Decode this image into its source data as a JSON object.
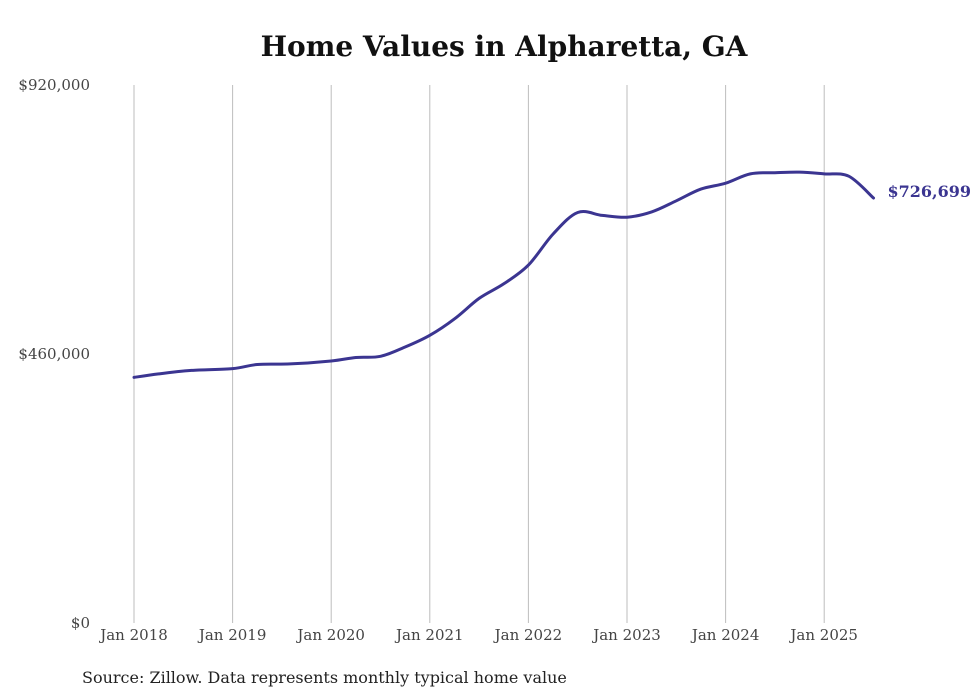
{
  "chart_data": {
    "type": "line",
    "title": "Home Values in Alpharetta, GA",
    "xlabel": "",
    "ylabel": "",
    "ylim": [
      0,
      920000
    ],
    "yticks": [
      "$0",
      "$460,000",
      "$920,000"
    ],
    "ytick_values": [
      0,
      460000,
      920000
    ],
    "xticks": [
      "Jan 2018",
      "Jan 2019",
      "Jan 2020",
      "Jan 2021",
      "Jan 2022",
      "Jan 2023",
      "Jan 2024",
      "Jan 2025"
    ],
    "xtick_years": [
      2018,
      2019,
      2020,
      2021,
      2022,
      2023,
      2024,
      2025
    ],
    "grid": "vertical",
    "line_color": "#3b3591",
    "end_label": "$726,699",
    "series": [
      {
        "points": [
          {
            "date": "2018-01",
            "value": 420000
          },
          {
            "date": "2018-04",
            "value": 426000
          },
          {
            "date": "2018-08",
            "value": 432000
          },
          {
            "date": "2019-01",
            "value": 435000
          },
          {
            "date": "2019-04",
            "value": 442000
          },
          {
            "date": "2019-08",
            "value": 443000
          },
          {
            "date": "2020-01",
            "value": 448000
          },
          {
            "date": "2020-04",
            "value": 454000
          },
          {
            "date": "2020-07",
            "value": 456000
          },
          {
            "date": "2020-10",
            "value": 472000
          },
          {
            "date": "2021-01",
            "value": 492000
          },
          {
            "date": "2021-04",
            "value": 520000
          },
          {
            "date": "2021-07",
            "value": 555000
          },
          {
            "date": "2021-10",
            "value": 580000
          },
          {
            "date": "2022-01",
            "value": 612000
          },
          {
            "date": "2022-04",
            "value": 665000
          },
          {
            "date": "2022-07",
            "value": 702000
          },
          {
            "date": "2022-10",
            "value": 697000
          },
          {
            "date": "2023-01",
            "value": 694000
          },
          {
            "date": "2023-04",
            "value": 703000
          },
          {
            "date": "2023-07",
            "value": 722000
          },
          {
            "date": "2023-10",
            "value": 742000
          },
          {
            "date": "2024-01",
            "value": 752000
          },
          {
            "date": "2024-04",
            "value": 768000
          },
          {
            "date": "2024-07",
            "value": 770000
          },
          {
            "date": "2024-10",
            "value": 771000
          },
          {
            "date": "2025-01",
            "value": 768000
          },
          {
            "date": "2025-04",
            "value": 764000
          },
          {
            "date": "2025-07",
            "value": 726699
          }
        ]
      }
    ]
  },
  "source_text": "Source: Zillow. Data represents monthly typical home value"
}
